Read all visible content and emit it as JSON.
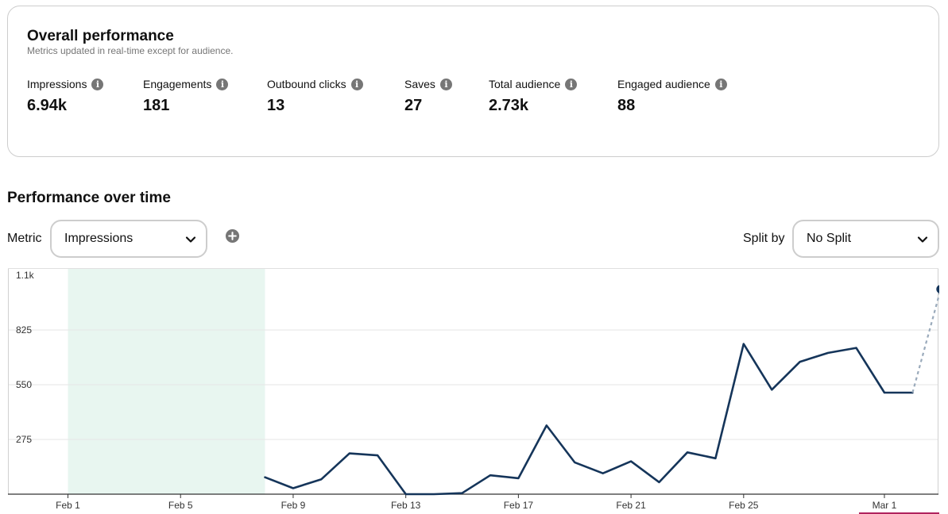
{
  "overview": {
    "title": "Overall performance",
    "subtitle": "Metrics updated in real-time except for audience.",
    "metrics": [
      {
        "label": "Impressions",
        "value": "6.94k"
      },
      {
        "label": "Engagements",
        "value": "181"
      },
      {
        "label": "Outbound clicks",
        "value": "13"
      },
      {
        "label": "Saves",
        "value": "27"
      },
      {
        "label": "Total audience",
        "value": "2.73k"
      },
      {
        "label": "Engaged audience",
        "value": "88"
      }
    ],
    "info_glyph": "i"
  },
  "over_time": {
    "title": "Performance over time",
    "metric_label": "Metric",
    "metric_value": "Impressions",
    "split_label": "Split by",
    "split_value": "No Split"
  },
  "colors": {
    "line": "#15355a",
    "highlight": "#e8f6f0",
    "projection": "#9aaabb",
    "accent_underline": "#b0235e"
  },
  "chart_data": {
    "type": "line",
    "x_ticks": [
      "Feb 1",
      "Feb 5",
      "Feb 9",
      "Feb 13",
      "Feb 17",
      "Feb 21",
      "Feb 25",
      "Mar 1"
    ],
    "y_ticks": [
      "1.1k",
      "825",
      "550",
      "275"
    ],
    "ylim": [
      0,
      1100
    ],
    "x_start": "Feb 1",
    "highlight_range": [
      "Feb 1",
      "Feb 8"
    ],
    "grid": true,
    "series": [
      {
        "x": [
          "Feb 8",
          "Feb 9",
          "Feb 10",
          "Feb 11",
          "Feb 12",
          "Feb 13",
          "Feb 14",
          "Feb 15",
          "Feb 16",
          "Feb 17",
          "Feb 18",
          "Feb 19",
          "Feb 20",
          "Feb 21",
          "Feb 22",
          "Feb 23",
          "Feb 24",
          "Feb 25",
          "Feb 26",
          "Feb 27",
          "Feb 28",
          "Feb 29",
          "Mar 1",
          "Mar 2"
        ],
        "values": [
          85,
          30,
          75,
          205,
          195,
          0,
          0,
          5,
          95,
          80,
          345,
          160,
          105,
          165,
          60,
          210,
          180,
          755,
          525,
          665,
          710,
          735,
          510,
          510
        ],
        "style": "solid"
      },
      {
        "x": [
          "Mar 2",
          "Mar 3"
        ],
        "values": [
          510,
          1030
        ],
        "style": "dashed"
      }
    ]
  }
}
